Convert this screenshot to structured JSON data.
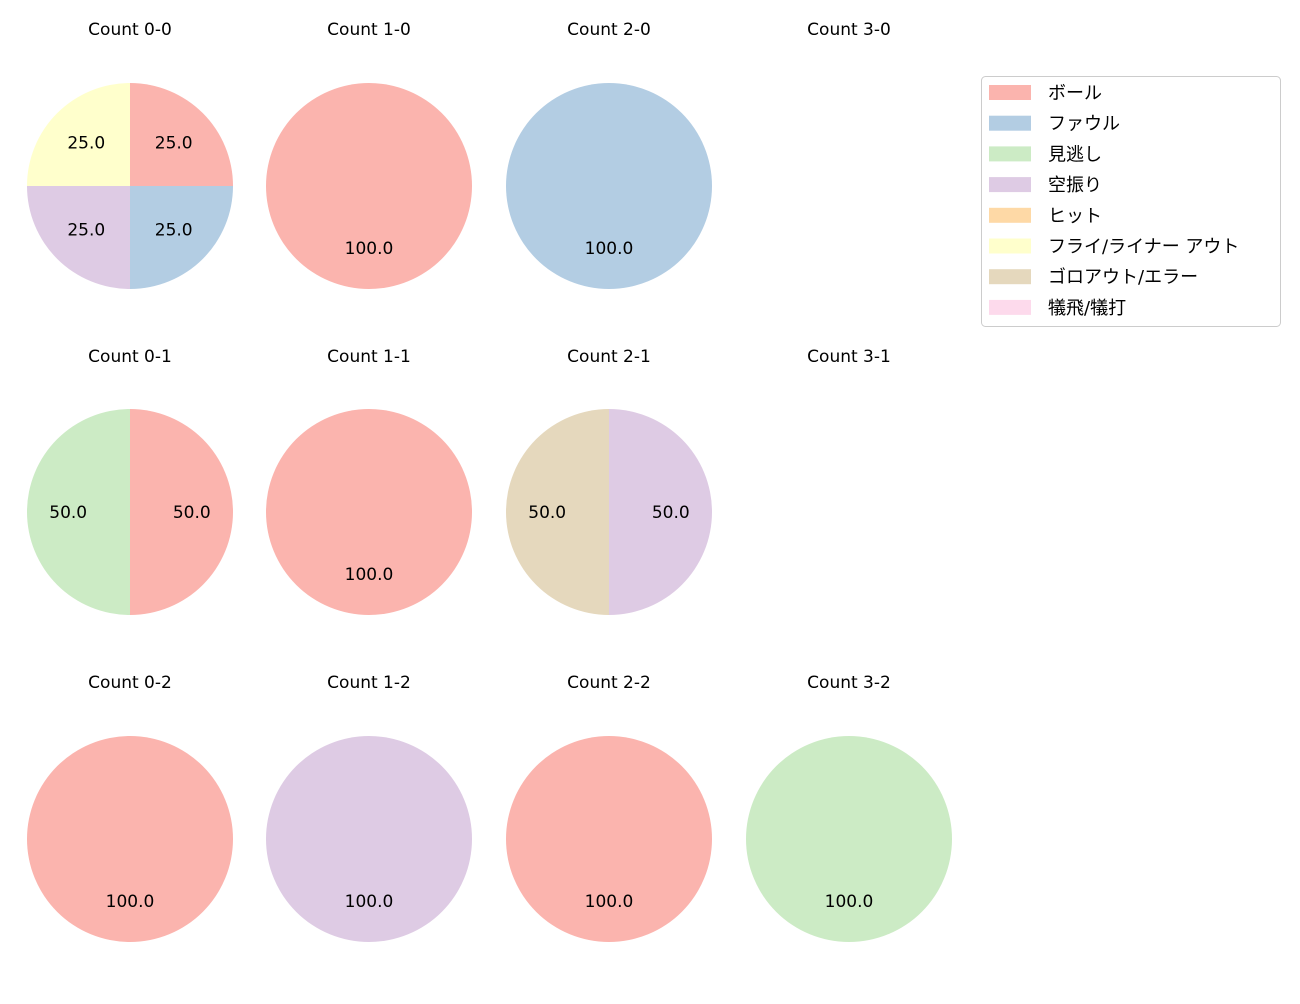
{
  "chart_data": {
    "type": "pie",
    "categories": [
      "ボール",
      "ファウル",
      "見逃し",
      "空振り",
      "ヒット",
      "フライ/ライナー アウト",
      "ゴロアウト/エラー",
      "犠飛/犠打"
    ],
    "colors": [
      "#fbb4ae",
      "#b3cde3",
      "#ccebc5",
      "#decbe4",
      "#fed9a6",
      "#ffffcc",
      "#e5d8bd",
      "#fddaec"
    ],
    "legend_position": "top-right",
    "start_angle": 90,
    "direction": "clockwise",
    "pies": [
      {
        "title": "Count 0-0",
        "values": [
          25,
          25,
          0,
          25,
          0,
          25,
          0,
          0
        ]
      },
      {
        "title": "Count 1-0",
        "values": [
          100,
          0,
          0,
          0,
          0,
          0,
          0,
          0
        ]
      },
      {
        "title": "Count 2-0",
        "values": [
          0,
          100,
          0,
          0,
          0,
          0,
          0,
          0
        ]
      },
      {
        "title": "Count 3-0",
        "values": []
      },
      {
        "title": "Count 0-1",
        "values": [
          50,
          0,
          50,
          0,
          0,
          0,
          0,
          0
        ]
      },
      {
        "title": "Count 1-1",
        "values": [
          100,
          0,
          0,
          0,
          0,
          0,
          0,
          0
        ]
      },
      {
        "title": "Count 2-1",
        "values": [
          0,
          0,
          0,
          50,
          0,
          0,
          50,
          0
        ]
      },
      {
        "title": "Count 3-1",
        "values": []
      },
      {
        "title": "Count 0-2",
        "values": [
          100,
          0,
          0,
          0,
          0,
          0,
          0,
          0
        ]
      },
      {
        "title": "Count 1-2",
        "values": [
          0,
          0,
          0,
          100,
          0,
          0,
          0,
          0
        ]
      },
      {
        "title": "Count 2-2",
        "values": [
          100,
          0,
          0,
          0,
          0,
          0,
          0,
          0
        ]
      },
      {
        "title": "Count 3-2",
        "values": [
          0,
          0,
          100,
          0,
          0,
          0,
          0,
          0
        ]
      }
    ]
  }
}
